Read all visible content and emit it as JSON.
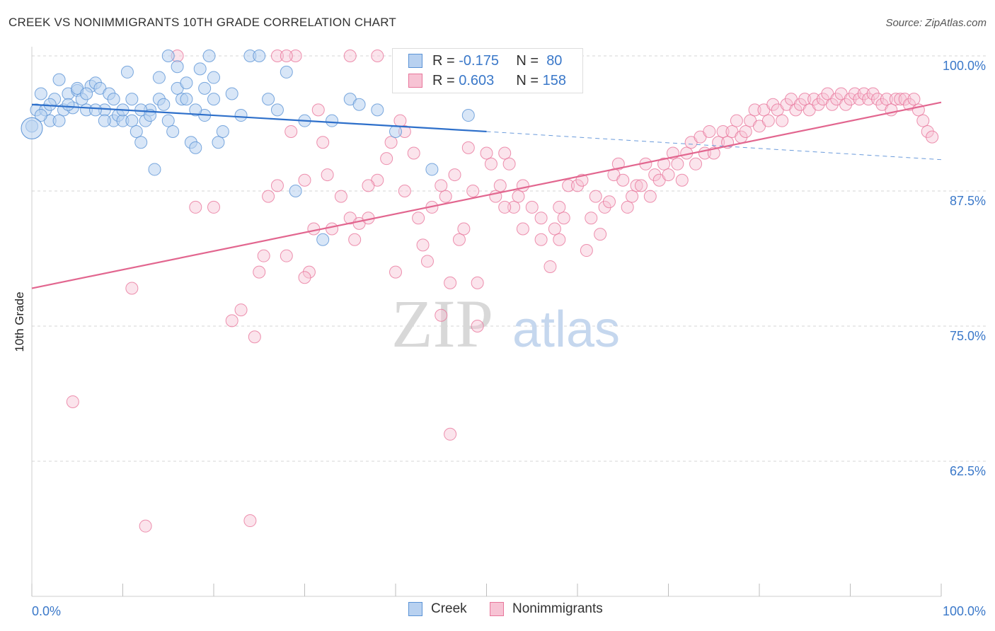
{
  "title": "CREEK VS NONIMMIGRANTS 10TH GRADE CORRELATION CHART",
  "source": "Source: ZipAtlas.com",
  "watermark": {
    "zip": "ZIP",
    "atlas": "atlas"
  },
  "legend": {
    "r_label": "R =",
    "n_label": "N =",
    "rows": [
      {
        "name": "Creek",
        "r": "-0.175",
        "n": "80",
        "color": "#5b93d6",
        "fill": "#b8d1f0"
      },
      {
        "name": "Nonimmigrants",
        "r": "0.603",
        "n": "158",
        "color": "#e8769b",
        "fill": "#f7c3d4"
      }
    ]
  },
  "chart_data": {
    "type": "scatter",
    "title": "CREEK VS NONIMMIGRANTS 10TH GRADE CORRELATION CHART",
    "xlabel": "",
    "ylabel": "10th Grade",
    "xlim": [
      0,
      100
    ],
    "ylim": [
      50,
      100
    ],
    "x_tick_labels": [
      "0.0%",
      "100.0%"
    ],
    "y_ticks": [
      100,
      87.5,
      75,
      62.5
    ],
    "y_tick_labels": [
      "100.0%",
      "87.5%",
      "75.0%",
      "62.5%"
    ],
    "grid": true,
    "series": [
      {
        "name": "Creek",
        "color": "#5b93d6",
        "trend": {
          "x0": 0,
          "y0": 95.5,
          "x1": 50,
          "y1": 93.0,
          "dashed_to_x": 100,
          "dashed_to_y": 90.4
        },
        "points": [
          [
            0,
            93.5
          ],
          [
            0.5,
            95
          ],
          [
            1,
            96.5
          ],
          [
            1.5,
            95
          ],
          [
            2,
            94
          ],
          [
            2.5,
            96
          ],
          [
            3,
            97.8
          ],
          [
            3.5,
            95
          ],
          [
            4,
            96.5
          ],
          [
            4.5,
            95.2
          ],
          [
            5,
            96.8
          ],
          [
            5.5,
            96
          ],
          [
            6,
            95
          ],
          [
            6.5,
            97.2
          ],
          [
            7,
            97.5
          ],
          [
            7.5,
            97
          ],
          [
            8,
            95
          ],
          [
            8.5,
            96.5
          ],
          [
            9,
            94
          ],
          [
            9.5,
            94.5
          ],
          [
            10,
            94
          ],
          [
            10.5,
            98.5
          ],
          [
            11,
            94
          ],
          [
            11.5,
            93
          ],
          [
            12,
            92
          ],
          [
            12.5,
            94
          ],
          [
            13,
            95
          ],
          [
            13.5,
            89.5
          ],
          [
            14,
            96
          ],
          [
            14.5,
            95.5
          ],
          [
            15,
            94
          ],
          [
            15.5,
            93
          ],
          [
            16,
            97
          ],
          [
            16.5,
            96
          ],
          [
            17,
            97.5
          ],
          [
            17.5,
            92
          ],
          [
            18,
            91.5
          ],
          [
            18.5,
            98.8
          ],
          [
            19,
            94.5
          ],
          [
            19.5,
            100
          ],
          [
            20,
            96
          ],
          [
            20.5,
            92
          ],
          [
            21,
            93
          ],
          [
            22,
            96.5
          ],
          [
            23,
            94.5
          ],
          [
            24,
            100
          ],
          [
            25,
            100
          ],
          [
            26,
            96
          ],
          [
            27,
            95
          ],
          [
            28,
            98.5
          ],
          [
            29,
            87.5
          ],
          [
            30,
            94
          ],
          [
            32,
            83
          ],
          [
            33,
            94
          ],
          [
            35,
            96
          ],
          [
            36,
            95.5
          ],
          [
            38,
            95
          ],
          [
            40,
            93
          ],
          [
            44,
            89.5
          ],
          [
            48,
            94.5
          ],
          [
            1,
            94.5
          ],
          [
            2,
            95.5
          ],
          [
            3,
            94
          ],
          [
            4,
            95.5
          ],
          [
            5,
            97
          ],
          [
            6,
            96.5
          ],
          [
            7,
            95
          ],
          [
            8,
            94
          ],
          [
            9,
            96
          ],
          [
            10,
            95
          ],
          [
            11,
            96
          ],
          [
            12,
            95
          ],
          [
            13,
            94.5
          ],
          [
            14,
            98
          ],
          [
            15,
            100
          ],
          [
            16,
            99
          ],
          [
            17,
            96
          ],
          [
            18,
            95
          ],
          [
            19,
            97
          ],
          [
            20,
            98
          ]
        ]
      },
      {
        "name": "Nonimmigrants",
        "color": "#e8769b",
        "trend": {
          "x0": 0,
          "y0": 78.5,
          "x1": 100,
          "y1": 95.7
        },
        "points": [
          [
            4.5,
            68
          ],
          [
            11,
            78.5
          ],
          [
            12.5,
            56.5
          ],
          [
            16,
            100
          ],
          [
            18,
            86
          ],
          [
            20,
            86
          ],
          [
            22,
            75.5
          ],
          [
            23,
            76.5
          ],
          [
            24,
            57
          ],
          [
            24.5,
            74
          ],
          [
            25,
            80
          ],
          [
            25.5,
            81.5
          ],
          [
            26,
            87
          ],
          [
            27,
            88
          ],
          [
            28,
            81.5
          ],
          [
            28.5,
            93
          ],
          [
            29,
            100
          ],
          [
            30,
            88.5
          ],
          [
            30.5,
            80
          ],
          [
            31,
            84
          ],
          [
            31.5,
            95
          ],
          [
            32,
            92
          ],
          [
            32.5,
            89
          ],
          [
            33,
            84
          ],
          [
            34,
            87
          ],
          [
            35,
            85
          ],
          [
            35.5,
            83
          ],
          [
            36,
            84.5
          ],
          [
            37,
            85
          ],
          [
            38,
            88.5
          ],
          [
            39,
            90.5
          ],
          [
            39.5,
            92
          ],
          [
            40,
            80
          ],
          [
            40.5,
            94
          ],
          [
            41,
            93
          ],
          [
            42,
            91
          ],
          [
            42.5,
            85
          ],
          [
            43,
            82.5
          ],
          [
            43.5,
            81
          ],
          [
            44,
            86
          ],
          [
            45,
            76
          ],
          [
            45.5,
            87
          ],
          [
            46,
            79
          ],
          [
            46.5,
            89
          ],
          [
            47,
            83
          ],
          [
            47.5,
            84
          ],
          [
            48,
            91.5
          ],
          [
            48.5,
            87.5
          ],
          [
            49,
            79
          ],
          [
            50,
            91
          ],
          [
            50.5,
            90
          ],
          [
            51,
            87
          ],
          [
            51.5,
            88
          ],
          [
            52,
            91
          ],
          [
            52.5,
            90
          ],
          [
            53,
            86
          ],
          [
            53.5,
            87
          ],
          [
            54,
            84
          ],
          [
            55,
            86
          ],
          [
            56,
            83
          ],
          [
            57,
            80.5
          ],
          [
            57.5,
            84
          ],
          [
            58,
            83
          ],
          [
            58.5,
            85
          ],
          [
            59,
            88
          ],
          [
            60,
            88
          ],
          [
            60.5,
            88.5
          ],
          [
            61,
            82
          ],
          [
            61.5,
            85
          ],
          [
            62,
            87
          ],
          [
            62.5,
            83.5
          ],
          [
            63,
            86
          ],
          [
            63.5,
            86.5
          ],
          [
            64,
            89
          ],
          [
            64.5,
            90
          ],
          [
            65,
            88.5
          ],
          [
            65.5,
            86
          ],
          [
            66,
            87
          ],
          [
            66.5,
            88
          ],
          [
            67,
            88
          ],
          [
            67.5,
            90
          ],
          [
            68,
            87
          ],
          [
            68.5,
            89
          ],
          [
            69,
            88.5
          ],
          [
            69.5,
            90
          ],
          [
            70,
            89
          ],
          [
            70.5,
            91
          ],
          [
            71,
            90
          ],
          [
            71.5,
            88.5
          ],
          [
            72,
            91
          ],
          [
            72.5,
            92
          ],
          [
            73,
            90
          ],
          [
            73.5,
            92.5
          ],
          [
            74,
            91
          ],
          [
            74.5,
            93
          ],
          [
            75,
            91
          ],
          [
            75.5,
            92
          ],
          [
            76,
            93
          ],
          [
            76.5,
            92
          ],
          [
            77,
            93
          ],
          [
            77.5,
            94
          ],
          [
            78,
            92.5
          ],
          [
            78.5,
            93
          ],
          [
            79,
            94
          ],
          [
            79.5,
            95
          ],
          [
            80,
            93.5
          ],
          [
            80.5,
            95
          ],
          [
            81,
            94
          ],
          [
            81.5,
            95.5
          ],
          [
            82,
            95
          ],
          [
            82.5,
            94
          ],
          [
            83,
            95.5
          ],
          [
            83.5,
            96
          ],
          [
            84,
            95
          ],
          [
            84.5,
            95.5
          ],
          [
            85,
            96
          ],
          [
            85.5,
            95
          ],
          [
            86,
            96
          ],
          [
            86.5,
            95.5
          ],
          [
            87,
            96
          ],
          [
            87.5,
            96.5
          ],
          [
            88,
            95.5
          ],
          [
            88.5,
            96
          ],
          [
            89,
            96.5
          ],
          [
            89.5,
            95.5
          ],
          [
            90,
            96
          ],
          [
            90.5,
            96.5
          ],
          [
            91,
            96
          ],
          [
            91.5,
            96.5
          ],
          [
            92,
            96
          ],
          [
            92.5,
            96.5
          ],
          [
            93,
            96
          ],
          [
            93.5,
            95.5
          ],
          [
            94,
            96
          ],
          [
            94.5,
            95
          ],
          [
            95,
            96
          ],
          [
            95.5,
            96
          ],
          [
            96,
            96
          ],
          [
            96.5,
            95.5
          ],
          [
            97,
            96
          ],
          [
            97.5,
            95
          ],
          [
            98,
            94
          ],
          [
            98.5,
            93
          ],
          [
            99,
            92.5
          ],
          [
            35,
            100
          ],
          [
            38,
            100
          ],
          [
            27,
            100
          ],
          [
            28,
            100
          ],
          [
            37,
            88
          ],
          [
            41,
            87.5
          ],
          [
            45,
            88
          ],
          [
            52,
            86
          ],
          [
            54,
            88
          ],
          [
            56,
            85
          ],
          [
            58,
            86
          ],
          [
            49,
            75
          ],
          [
            46,
            65
          ],
          [
            30,
            79.5
          ]
        ]
      }
    ]
  }
}
